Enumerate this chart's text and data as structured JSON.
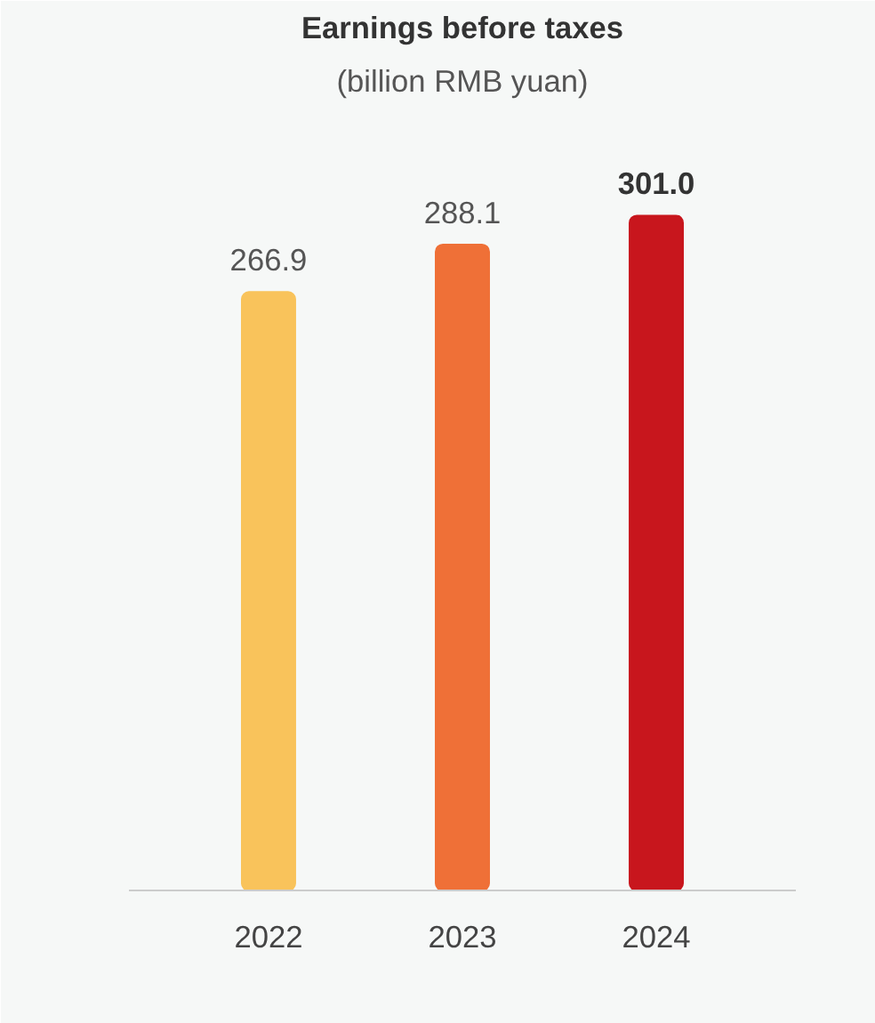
{
  "chart_data": {
    "type": "bar",
    "title": "Earnings before taxes",
    "subtitle": "(billion RMB yuan)",
    "categories": [
      "2022",
      "2023",
      "2024"
    ],
    "values": [
      266.9,
      288.1,
      301.0
    ],
    "colors": [
      "#f9c35b",
      "#ef7037",
      "#c8161d"
    ],
    "value_labels": [
      "266.9",
      "288.1",
      "301.0"
    ],
    "grid": false,
    "tick_labels": "x"
  }
}
